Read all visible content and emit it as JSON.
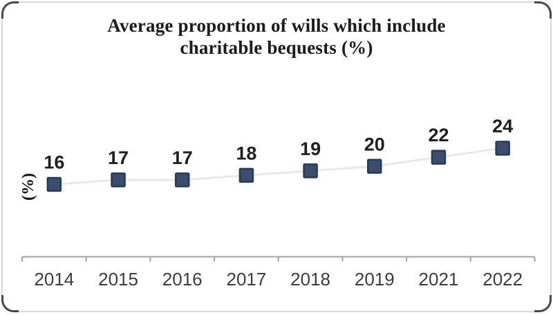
{
  "chart_data": {
    "type": "line",
    "title": "Average proportion of wills which include charitable bequests (%)",
    "title_lines": [
      "Average proportion of wills which include",
      "charitable bequests (%)"
    ],
    "ylabel": "(%)",
    "xlabel": "",
    "categories": [
      "2014",
      "2015",
      "2016",
      "2017",
      "2018",
      "2019",
      "2021",
      "2022"
    ],
    "values": [
      16,
      17,
      17,
      18,
      19,
      20,
      22,
      24
    ],
    "ylim": [
      0,
      56
    ],
    "grid": false,
    "legend": "none",
    "marker": "square",
    "data_labels_shown": true,
    "colors": {
      "marker_fill": "#3b4e6d",
      "marker_border": "#26395a",
      "line": "#e9e9e9",
      "axis": "#a3a3a3",
      "data_label": "#1f1f1f",
      "tick_label": "#3c3c3c",
      "title": "#1b1b1b"
    }
  }
}
